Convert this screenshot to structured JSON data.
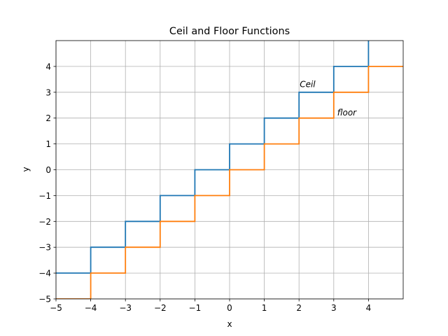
{
  "chart_data": {
    "type": "line",
    "title": "Ceil and Floor Functions",
    "xlabel": "x",
    "ylabel": "y",
    "xlim": [
      -5,
      5
    ],
    "ylim": [
      -5,
      5
    ],
    "grid": true,
    "x_ticks": [
      -5,
      -4,
      -3,
      -2,
      -1,
      0,
      1,
      2,
      3,
      4
    ],
    "x_tick_labels": [
      "−5",
      "−4",
      "−3",
      "−2",
      "−1",
      "0",
      "1",
      "2",
      "3",
      "4"
    ],
    "y_ticks": [
      -5,
      -4,
      -3,
      -2,
      -1,
      0,
      1,
      2,
      3,
      4
    ],
    "y_tick_labels": [
      "−5",
      "−4",
      "−3",
      "−2",
      "−1",
      "0",
      "1",
      "2",
      "3",
      "4"
    ],
    "series": [
      {
        "color": "#1f77b4",
        "x": [
          -5,
          -4,
          -4,
          -3,
          -3,
          -2,
          -2,
          -1,
          -1,
          0,
          0,
          1,
          1,
          2,
          2,
          3,
          3,
          4,
          4
        ],
        "y": [
          -4,
          -4,
          -3,
          -3,
          -2,
          -2,
          -1,
          -1,
          0,
          0,
          1,
          1,
          2,
          2,
          3,
          3,
          4,
          4,
          5
        ]
      },
      {
        "color": "#ff7f0e",
        "x": [
          -5,
          -4,
          -4,
          -3,
          -3,
          -2,
          -2,
          -1,
          -1,
          0,
          0,
          1,
          1,
          2,
          2,
          3,
          3,
          4,
          4,
          5
        ],
        "y": [
          -5,
          -5,
          -4,
          -4,
          -3,
          -3,
          -2,
          -2,
          -1,
          -1,
          0,
          0,
          1,
          1,
          2,
          2,
          3,
          3,
          4,
          4
        ]
      }
    ],
    "annotations": [
      {
        "text": "Ceil",
        "x": 2.02,
        "y": 3.2
      },
      {
        "text": "floor",
        "x": 3.1,
        "y": 2.1
      }
    ]
  }
}
